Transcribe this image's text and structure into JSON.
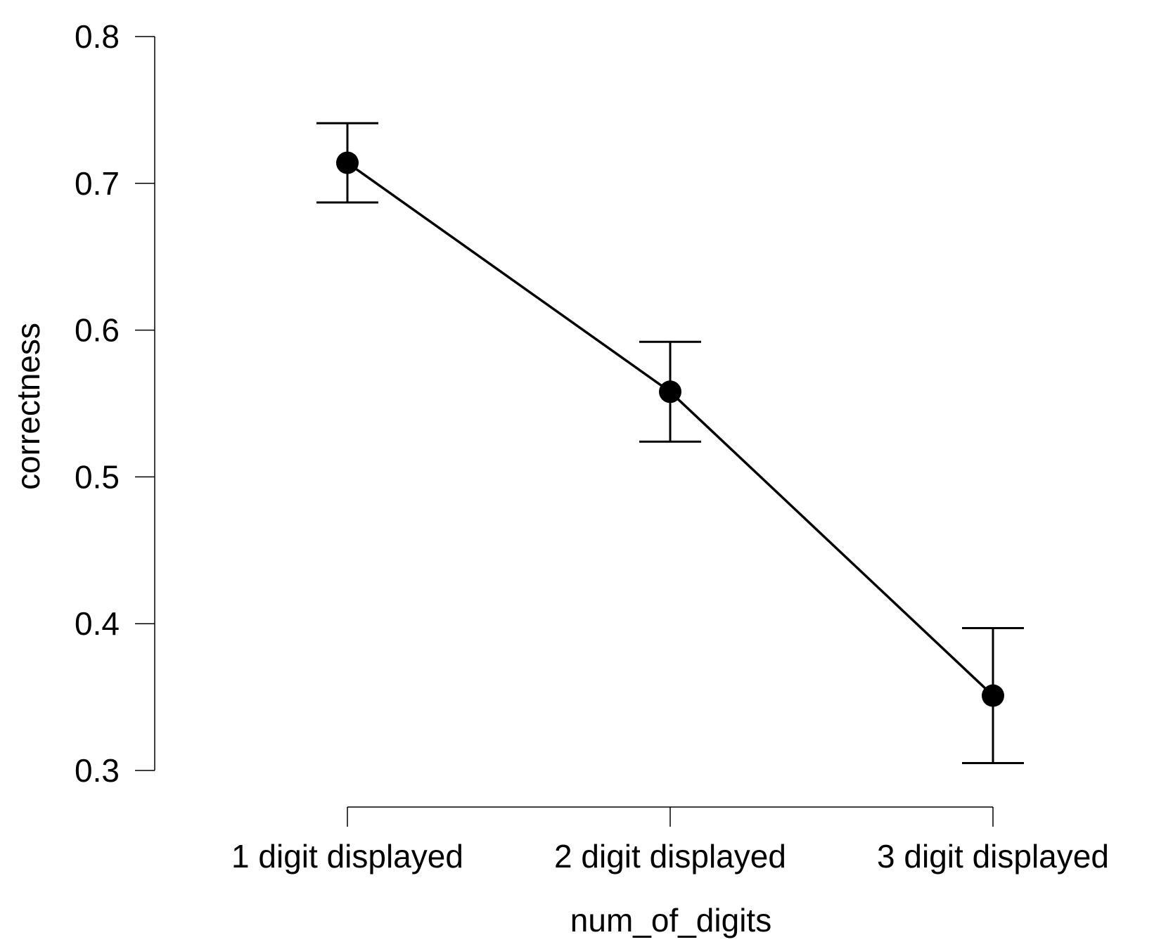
{
  "chart_data": {
    "type": "line",
    "title": "",
    "xlabel": "num_of_digits",
    "ylabel": "correctness",
    "categories": [
      "1 digit displayed",
      "2 digit displayed",
      "3 digit displayed"
    ],
    "series": [
      {
        "values": [
          0.714,
          0.558,
          0.351
        ],
        "error_lower": [
          0.687,
          0.524,
          0.305
        ],
        "error_upper": [
          0.741,
          0.592,
          0.397
        ]
      }
    ],
    "ylim": [
      0.3,
      0.8
    ],
    "yticks": [
      "0.3",
      "0.4",
      "0.5",
      "0.6",
      "0.7",
      "0.8"
    ],
    "grid": false,
    "legend": "none"
  }
}
